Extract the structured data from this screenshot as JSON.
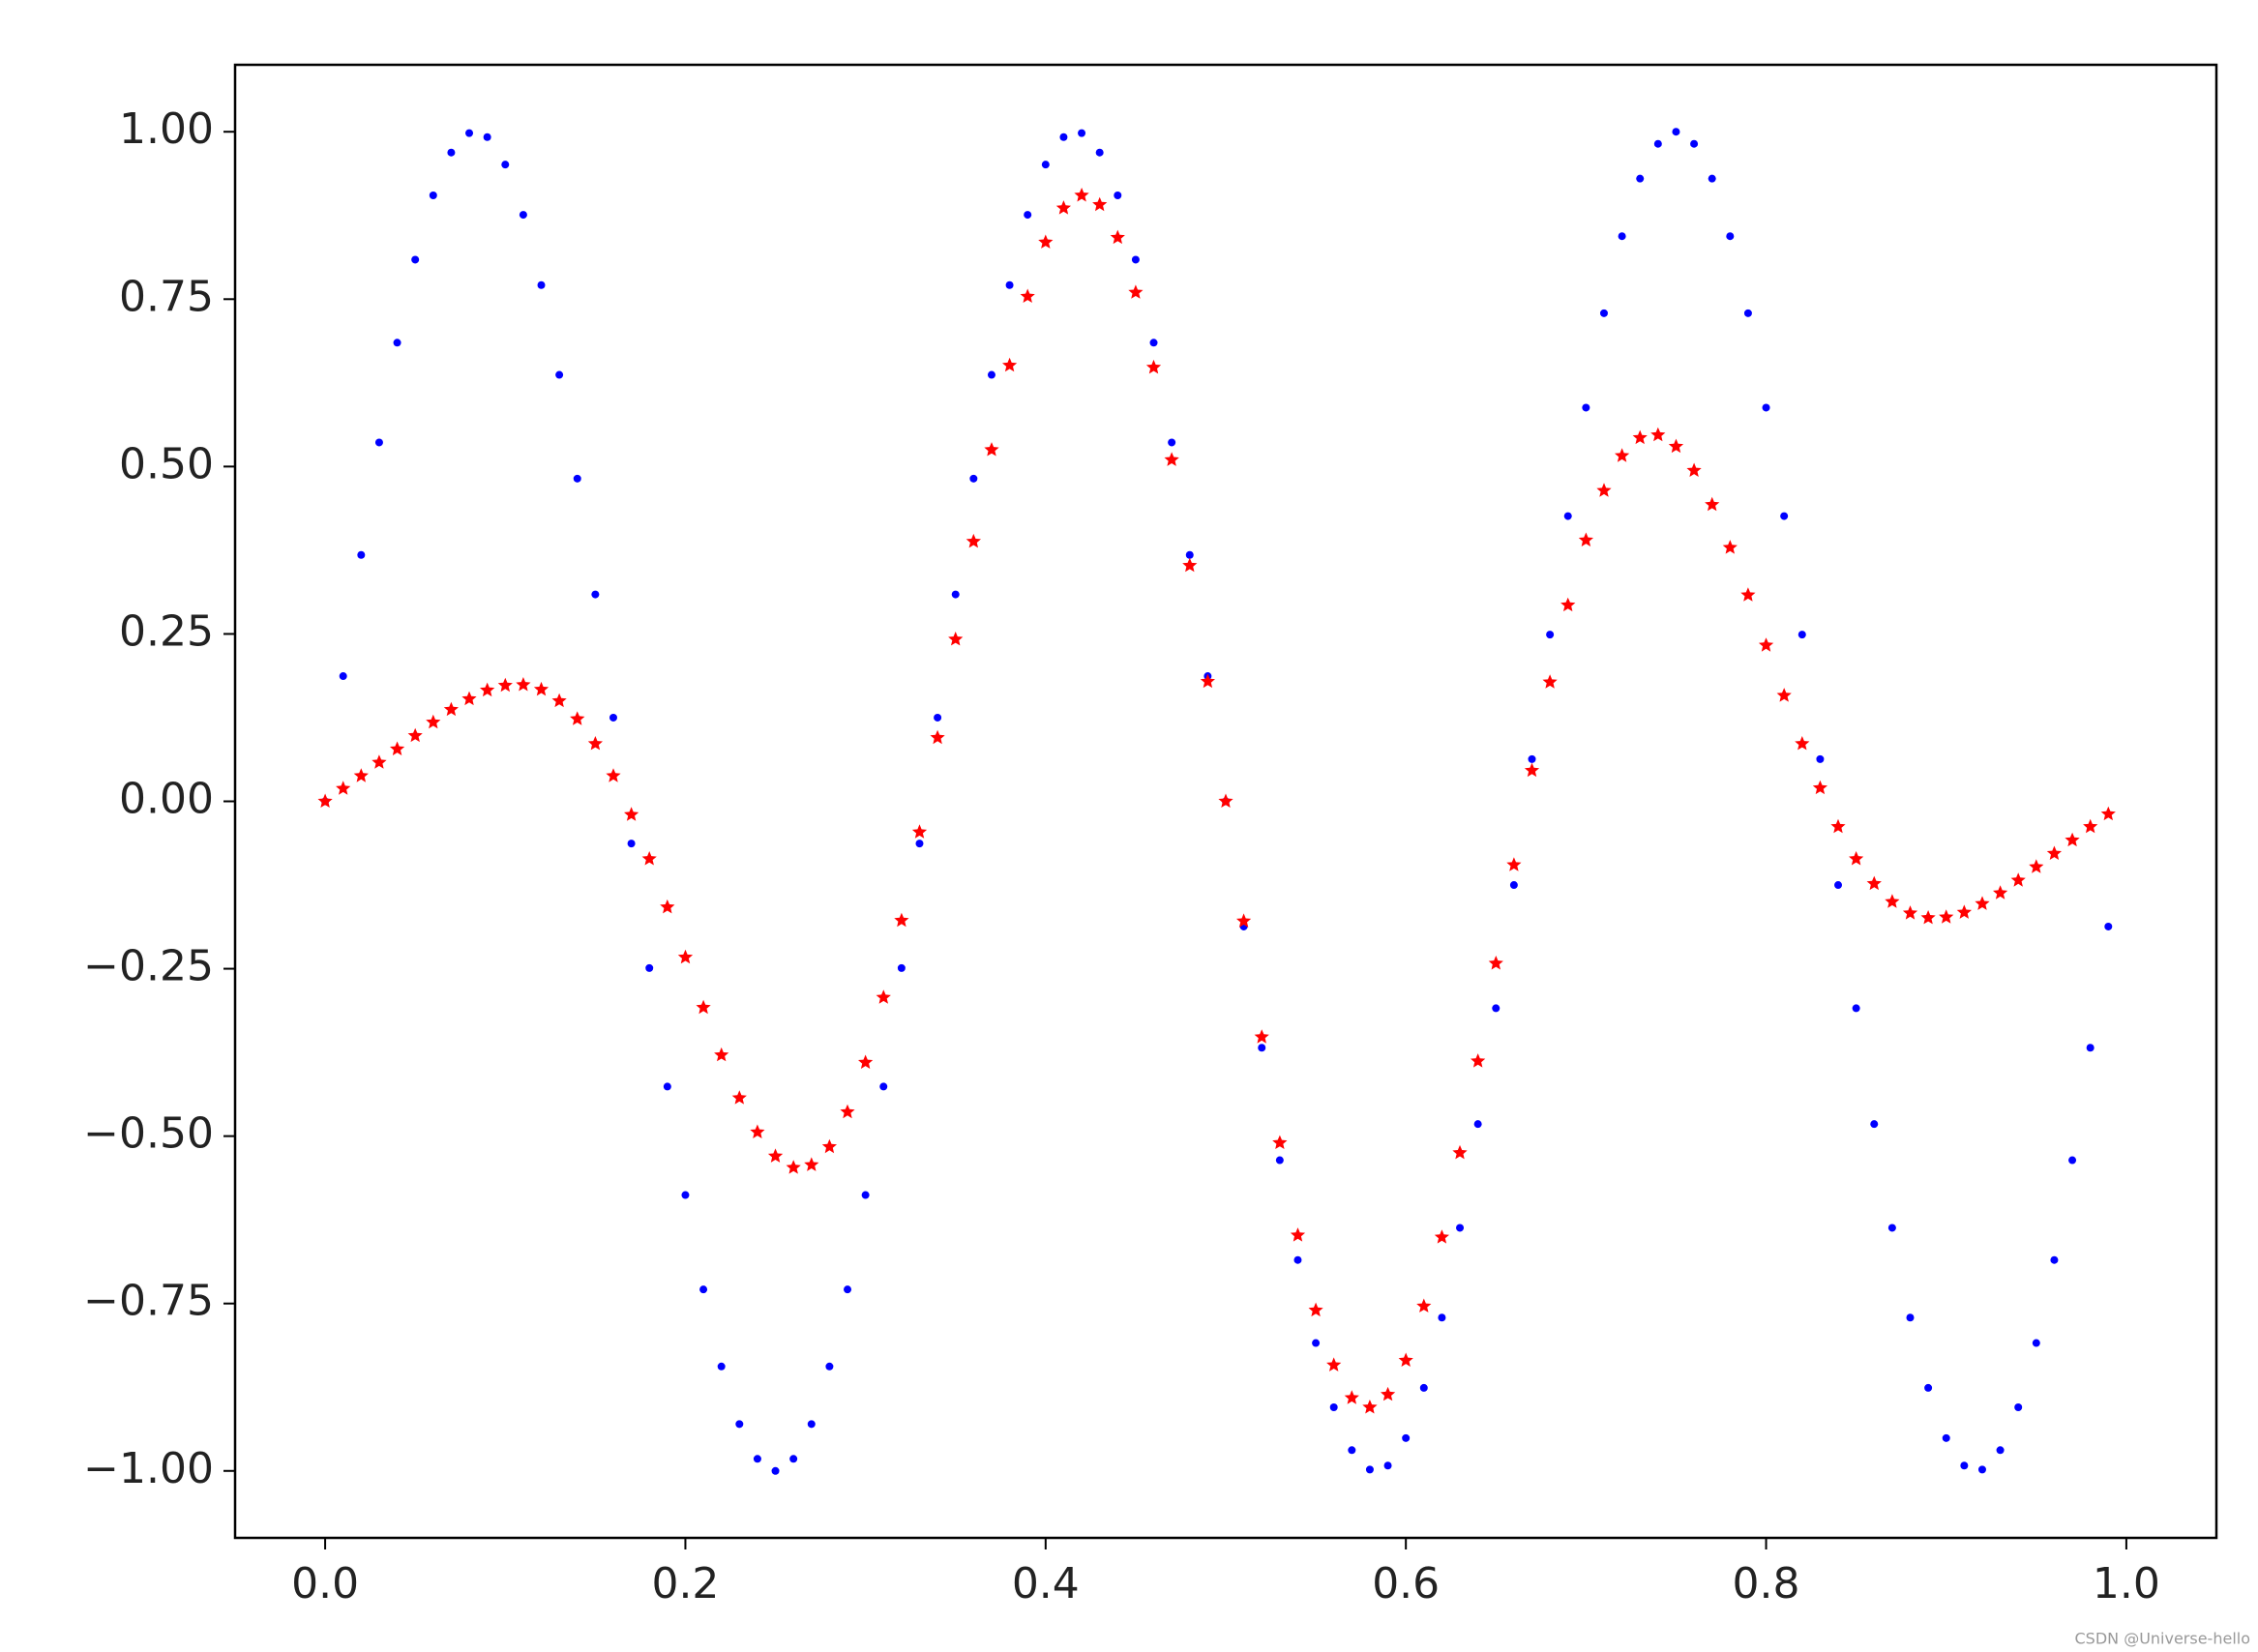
{
  "chart_data": {
    "type": "scatter",
    "x": [
      0,
      0.01,
      0.02,
      0.03,
      0.04,
      0.05,
      0.06,
      0.07,
      0.08,
      0.09,
      0.1,
      0.11,
      0.12,
      0.13,
      0.14,
      0.15,
      0.16,
      0.17,
      0.18,
      0.19,
      0.2,
      0.21,
      0.22,
      0.23,
      0.24,
      0.25,
      0.26,
      0.27,
      0.28,
      0.29,
      0.3,
      0.31,
      0.32,
      0.33,
      0.34,
      0.35,
      0.36,
      0.37,
      0.38,
      0.39,
      0.4,
      0.41,
      0.42,
      0.43,
      0.44,
      0.45,
      0.46,
      0.47,
      0.48,
      0.49,
      0.5,
      0.51,
      0.52,
      0.53,
      0.54,
      0.55,
      0.56,
      0.57,
      0.58,
      0.59,
      0.6,
      0.61,
      0.62,
      0.63,
      0.64,
      0.65,
      0.66,
      0.67,
      0.68,
      0.69,
      0.7,
      0.71,
      0.72,
      0.73,
      0.74,
      0.75,
      0.76,
      0.77,
      0.78,
      0.79,
      0.8,
      0.81,
      0.82,
      0.83,
      0.84,
      0.85,
      0.86,
      0.87,
      0.88,
      0.89,
      0.9,
      0.91,
      0.92,
      0.93,
      0.94,
      0.95,
      0.96,
      0.97,
      0.98,
      0.99
    ],
    "series": [
      {
        "color": "#0000ff",
        "marker": "dot",
        "values": [
          0,
          0.187,
          0.368,
          0.536,
          0.685,
          0.809,
          0.905,
          0.969,
          0.998,
          0.992,
          0.951,
          0.876,
          0.771,
          0.637,
          0.482,
          0.309,
          0.125,
          -0.063,
          -0.249,
          -0.426,
          -0.588,
          -0.729,
          -0.844,
          -0.93,
          -0.982,
          -1,
          -0.982,
          -0.93,
          -0.844,
          -0.729,
          -0.588,
          -0.426,
          -0.249,
          -0.063,
          0.125,
          0.309,
          0.482,
          0.637,
          0.771,
          0.876,
          0.951,
          0.992,
          0.998,
          0.969,
          0.905,
          0.809,
          0.685,
          0.536,
          0.368,
          0.187,
          0,
          -0.187,
          -0.368,
          -0.536,
          -0.685,
          -0.809,
          -0.905,
          -0.969,
          -0.998,
          -0.992,
          -0.951,
          -0.876,
          -0.771,
          -0.637,
          -0.482,
          -0.309,
          -0.125,
          0.063,
          0.249,
          0.426,
          0.588,
          0.729,
          0.844,
          0.93,
          0.982,
          1,
          0.982,
          0.93,
          0.844,
          0.729,
          0.588,
          0.426,
          0.249,
          0.063,
          -0.125,
          -0.309,
          -0.482,
          -0.637,
          -0.771,
          -0.876,
          -0.951,
          -0.992,
          -0.998,
          -0.969,
          -0.905,
          -0.809,
          -0.685,
          -0.536,
          -0.368,
          -0.187
        ]
      },
      {
        "color": "#ff0000",
        "marker": "star",
        "values": [
          0,
          0.019,
          0.038,
          0.058,
          0.078,
          0.098,
          0.118,
          0.137,
          0.153,
          0.166,
          0.173,
          0.174,
          0.167,
          0.15,
          0.123,
          0.086,
          0.038,
          -0.02,
          -0.086,
          -0.158,
          -0.233,
          -0.308,
          -0.379,
          -0.443,
          -0.494,
          -0.53,
          -0.547,
          -0.543,
          -0.516,
          -0.464,
          -0.39,
          -0.293,
          -0.178,
          -0.046,
          0.095,
          0.242,
          0.388,
          0.525,
          0.651,
          0.754,
          0.835,
          0.886,
          0.905,
          0.891,
          0.842,
          0.76,
          0.648,
          0.51,
          0.352,
          0.179,
          0,
          -0.179,
          -0.352,
          -0.51,
          -0.648,
          -0.76,
          -0.842,
          -0.891,
          -0.905,
          -0.886,
          -0.835,
          -0.754,
          -0.651,
          -0.525,
          -0.388,
          -0.242,
          -0.095,
          0.046,
          0.178,
          0.293,
          0.39,
          0.464,
          0.516,
          0.543,
          0.547,
          0.53,
          0.494,
          0.443,
          0.379,
          0.308,
          0.233,
          0.158,
          0.086,
          0.02,
          -0.038,
          -0.086,
          -0.123,
          -0.15,
          -0.167,
          -0.174,
          -0.173,
          -0.166,
          -0.153,
          -0.137,
          -0.118,
          -0.098,
          -0.078,
          -0.058,
          -0.038,
          -0.019
        ]
      }
    ],
    "xlim": [
      -0.05,
      1.05
    ],
    "ylim": [
      -1.1,
      1.1
    ],
    "xticks": [
      {
        "value": 0,
        "label": "0.0"
      },
      {
        "value": 0.2,
        "label": "0.2"
      },
      {
        "value": 0.4,
        "label": "0.4"
      },
      {
        "value": 0.6,
        "label": "0.6"
      },
      {
        "value": 0.8,
        "label": "0.8"
      },
      {
        "value": 1,
        "label": "1.0"
      }
    ],
    "yticks": [
      {
        "value": -1,
        "label": "−1.00"
      },
      {
        "value": -0.75,
        "label": "−0.75"
      },
      {
        "value": -0.5,
        "label": "−0.50"
      },
      {
        "value": -0.25,
        "label": "−0.25"
      },
      {
        "value": 0,
        "label": "0.00"
      },
      {
        "value": 0.25,
        "label": "0.25"
      },
      {
        "value": 0.5,
        "label": "0.50"
      },
      {
        "value": 0.75,
        "label": "0.75"
      },
      {
        "value": 1,
        "label": "1.00"
      }
    ],
    "grid": false,
    "watermark": "CSDN @Universe-hello"
  }
}
